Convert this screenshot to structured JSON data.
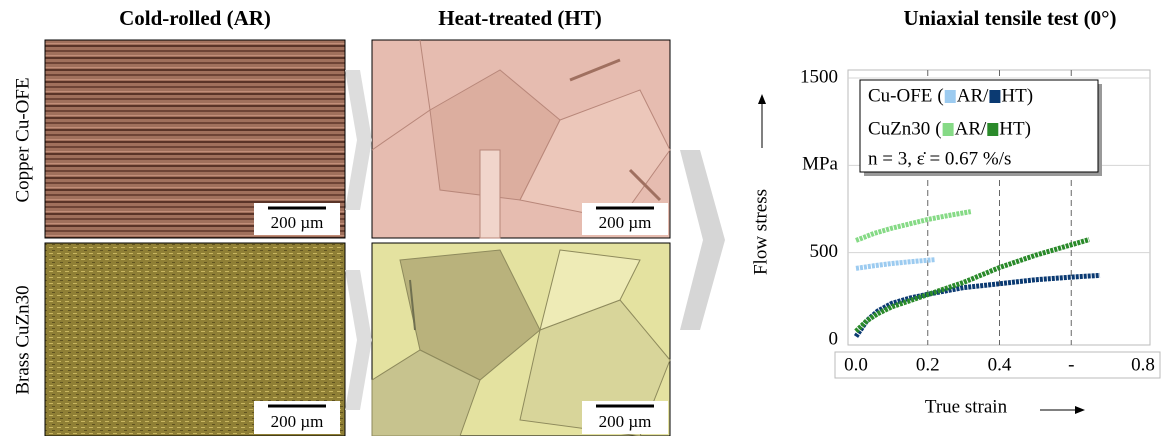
{
  "figure": {
    "columns": [
      "Cold-rolled (AR)",
      "Heat-treated (HT)"
    ],
    "rows": [
      "Copper Cu-OFE",
      "Brass CuZn30"
    ],
    "scale_bar": "200 µm"
  },
  "chart_data": {
    "type": "line",
    "title": "Uniaxial tensile test (0°)",
    "x_label": "True strain",
    "y_label": "Flow stress",
    "annotation": "n = 3, ε̇ = 0.67 %/s",
    "xlim": [
      0,
      0.8
    ],
    "ylim": [
      0,
      1500
    ],
    "xticks": [
      {
        "value": 0,
        "label": "0.0"
      },
      0.2,
      0.4,
      {
        "value": 0.6,
        "label": "-"
      },
      0.8
    ],
    "yticks": [
      0,
      500,
      {
        "value": 1000,
        "label": "MPa"
      },
      1500
    ],
    "grid": true,
    "legend": {
      "groups": [
        {
          "label": "Cu-OFE",
          "series": [
            0,
            1
          ]
        },
        {
          "label": "CuZn30",
          "series": [
            2,
            3
          ]
        }
      ],
      "open": "(",
      "separator": "/",
      "close": ")"
    },
    "series": [
      {
        "name": "AR",
        "color": "#9ccbf0",
        "x": [
          0,
          0.05,
          0.1,
          0.15,
          0.22
        ],
        "values": [
          410,
          425,
          438,
          448,
          460
        ]
      },
      {
        "name": "HT",
        "color": "#0b3a72",
        "x": [
          0,
          0.03,
          0.06,
          0.1,
          0.15,
          0.2,
          0.3,
          0.4,
          0.5,
          0.6,
          0.68
        ],
        "values": [
          20,
          110,
          165,
          210,
          240,
          262,
          300,
          322,
          345,
          360,
          370
        ]
      },
      {
        "name": "AR",
        "color": "#86da86",
        "x": [
          0,
          0.05,
          0.1,
          0.15,
          0.2,
          0.25,
          0.32
        ],
        "values": [
          570,
          610,
          640,
          665,
          690,
          710,
          735
        ]
      },
      {
        "name": "HT",
        "color": "#2a8a2a",
        "x": [
          0,
          0.03,
          0.06,
          0.1,
          0.15,
          0.2,
          0.3,
          0.4,
          0.5,
          0.6,
          0.65
        ],
        "values": [
          50,
          110,
          150,
          190,
          225,
          260,
          330,
          415,
          485,
          545,
          575
        ]
      }
    ]
  }
}
